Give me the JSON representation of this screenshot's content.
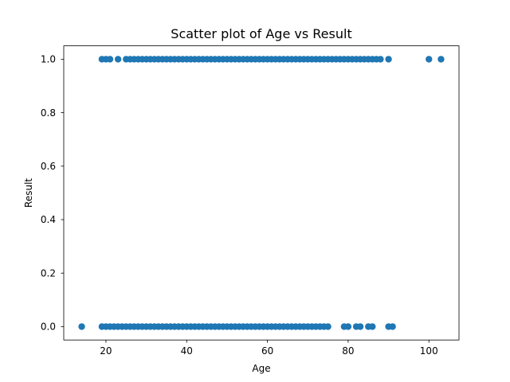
{
  "chart_data": {
    "type": "scatter",
    "title": "Scatter plot of Age vs Result",
    "xlabel": "Age",
    "ylabel": "Result",
    "xlim": [
      9.55,
      107.45
    ],
    "ylim": [
      -0.05,
      1.05
    ],
    "xticks": [
      20,
      40,
      60,
      80,
      100
    ],
    "yticks": [
      0.0,
      0.2,
      0.4,
      0.6,
      0.8,
      1.0
    ],
    "xtick_labels": [
      "20",
      "40",
      "60",
      "80",
      "100"
    ],
    "ytick_labels": [
      "0.0",
      "0.2",
      "0.4",
      "0.6",
      "0.8",
      "1.0"
    ],
    "grid": false,
    "marker_color": "#1f77b4",
    "points": [
      {
        "x": 14,
        "y": 0
      },
      {
        "x": 19,
        "y": 0
      },
      {
        "x": 20,
        "y": 0
      },
      {
        "x": 21,
        "y": 0
      },
      {
        "x": 22,
        "y": 0
      },
      {
        "x": 23,
        "y": 0
      },
      {
        "x": 24,
        "y": 0
      },
      {
        "x": 25,
        "y": 0
      },
      {
        "x": 26,
        "y": 0
      },
      {
        "x": 27,
        "y": 0
      },
      {
        "x": 28,
        "y": 0
      },
      {
        "x": 29,
        "y": 0
      },
      {
        "x": 30,
        "y": 0
      },
      {
        "x": 31,
        "y": 0
      },
      {
        "x": 32,
        "y": 0
      },
      {
        "x": 33,
        "y": 0
      },
      {
        "x": 34,
        "y": 0
      },
      {
        "x": 35,
        "y": 0
      },
      {
        "x": 36,
        "y": 0
      },
      {
        "x": 37,
        "y": 0
      },
      {
        "x": 38,
        "y": 0
      },
      {
        "x": 39,
        "y": 0
      },
      {
        "x": 40,
        "y": 0
      },
      {
        "x": 41,
        "y": 0
      },
      {
        "x": 42,
        "y": 0
      },
      {
        "x": 43,
        "y": 0
      },
      {
        "x": 44,
        "y": 0
      },
      {
        "x": 45,
        "y": 0
      },
      {
        "x": 46,
        "y": 0
      },
      {
        "x": 47,
        "y": 0
      },
      {
        "x": 48,
        "y": 0
      },
      {
        "x": 49,
        "y": 0
      },
      {
        "x": 50,
        "y": 0
      },
      {
        "x": 51,
        "y": 0
      },
      {
        "x": 52,
        "y": 0
      },
      {
        "x": 53,
        "y": 0
      },
      {
        "x": 54,
        "y": 0
      },
      {
        "x": 55,
        "y": 0
      },
      {
        "x": 56,
        "y": 0
      },
      {
        "x": 57,
        "y": 0
      },
      {
        "x": 58,
        "y": 0
      },
      {
        "x": 59,
        "y": 0
      },
      {
        "x": 60,
        "y": 0
      },
      {
        "x": 61,
        "y": 0
      },
      {
        "x": 62,
        "y": 0
      },
      {
        "x": 63,
        "y": 0
      },
      {
        "x": 64,
        "y": 0
      },
      {
        "x": 65,
        "y": 0
      },
      {
        "x": 66,
        "y": 0
      },
      {
        "x": 67,
        "y": 0
      },
      {
        "x": 68,
        "y": 0
      },
      {
        "x": 69,
        "y": 0
      },
      {
        "x": 70,
        "y": 0
      },
      {
        "x": 71,
        "y": 0
      },
      {
        "x": 72,
        "y": 0
      },
      {
        "x": 73,
        "y": 0
      },
      {
        "x": 74,
        "y": 0
      },
      {
        "x": 75,
        "y": 0
      },
      {
        "x": 79,
        "y": 0
      },
      {
        "x": 80,
        "y": 0
      },
      {
        "x": 82,
        "y": 0
      },
      {
        "x": 83,
        "y": 0
      },
      {
        "x": 85,
        "y": 0
      },
      {
        "x": 86,
        "y": 0
      },
      {
        "x": 90,
        "y": 0
      },
      {
        "x": 91,
        "y": 0
      },
      {
        "x": 19,
        "y": 1
      },
      {
        "x": 20,
        "y": 1
      },
      {
        "x": 21,
        "y": 1
      },
      {
        "x": 23,
        "y": 1
      },
      {
        "x": 25,
        "y": 1
      },
      {
        "x": 26,
        "y": 1
      },
      {
        "x": 27,
        "y": 1
      },
      {
        "x": 28,
        "y": 1
      },
      {
        "x": 29,
        "y": 1
      },
      {
        "x": 30,
        "y": 1
      },
      {
        "x": 31,
        "y": 1
      },
      {
        "x": 32,
        "y": 1
      },
      {
        "x": 33,
        "y": 1
      },
      {
        "x": 34,
        "y": 1
      },
      {
        "x": 35,
        "y": 1
      },
      {
        "x": 36,
        "y": 1
      },
      {
        "x": 37,
        "y": 1
      },
      {
        "x": 38,
        "y": 1
      },
      {
        "x": 39,
        "y": 1
      },
      {
        "x": 40,
        "y": 1
      },
      {
        "x": 41,
        "y": 1
      },
      {
        "x": 42,
        "y": 1
      },
      {
        "x": 43,
        "y": 1
      },
      {
        "x": 44,
        "y": 1
      },
      {
        "x": 45,
        "y": 1
      },
      {
        "x": 46,
        "y": 1
      },
      {
        "x": 47,
        "y": 1
      },
      {
        "x": 48,
        "y": 1
      },
      {
        "x": 49,
        "y": 1
      },
      {
        "x": 50,
        "y": 1
      },
      {
        "x": 51,
        "y": 1
      },
      {
        "x": 52,
        "y": 1
      },
      {
        "x": 53,
        "y": 1
      },
      {
        "x": 54,
        "y": 1
      },
      {
        "x": 55,
        "y": 1
      },
      {
        "x": 56,
        "y": 1
      },
      {
        "x": 57,
        "y": 1
      },
      {
        "x": 58,
        "y": 1
      },
      {
        "x": 59,
        "y": 1
      },
      {
        "x": 60,
        "y": 1
      },
      {
        "x": 61,
        "y": 1
      },
      {
        "x": 62,
        "y": 1
      },
      {
        "x": 63,
        "y": 1
      },
      {
        "x": 64,
        "y": 1
      },
      {
        "x": 65,
        "y": 1
      },
      {
        "x": 66,
        "y": 1
      },
      {
        "x": 67,
        "y": 1
      },
      {
        "x": 68,
        "y": 1
      },
      {
        "x": 69,
        "y": 1
      },
      {
        "x": 70,
        "y": 1
      },
      {
        "x": 71,
        "y": 1
      },
      {
        "x": 72,
        "y": 1
      },
      {
        "x": 73,
        "y": 1
      },
      {
        "x": 74,
        "y": 1
      },
      {
        "x": 75,
        "y": 1
      },
      {
        "x": 76,
        "y": 1
      },
      {
        "x": 77,
        "y": 1
      },
      {
        "x": 78,
        "y": 1
      },
      {
        "x": 79,
        "y": 1
      },
      {
        "x": 80,
        "y": 1
      },
      {
        "x": 81,
        "y": 1
      },
      {
        "x": 82,
        "y": 1
      },
      {
        "x": 83,
        "y": 1
      },
      {
        "x": 84,
        "y": 1
      },
      {
        "x": 85,
        "y": 1
      },
      {
        "x": 86,
        "y": 1
      },
      {
        "x": 87,
        "y": 1
      },
      {
        "x": 88,
        "y": 1
      },
      {
        "x": 90,
        "y": 1
      },
      {
        "x": 100,
        "y": 1
      },
      {
        "x": 103,
        "y": 1
      }
    ]
  }
}
